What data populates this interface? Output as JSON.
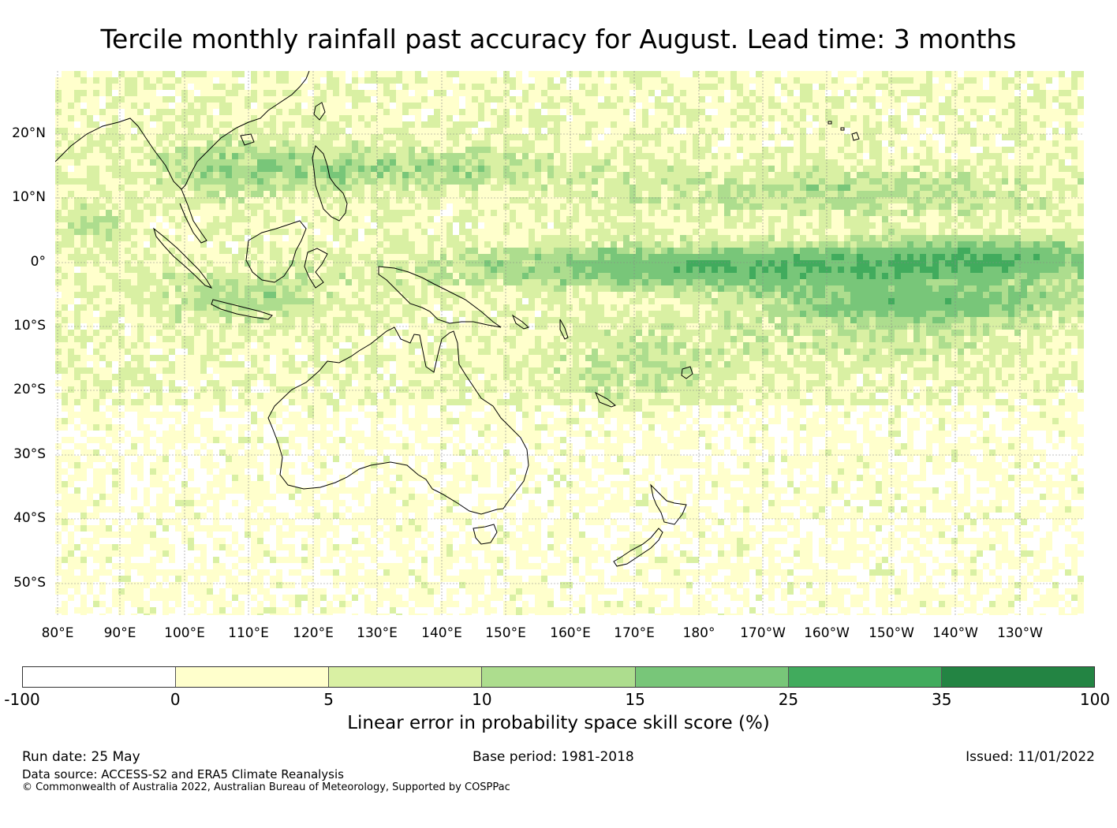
{
  "title": "Tercile monthly rainfall past accuracy for August. Lead time: 3 months",
  "map": {
    "lat_labels": [
      "20°N",
      "10°N",
      "0°",
      "10°S",
      "20°S",
      "30°S",
      "40°S",
      "50°S"
    ],
    "lon_labels": [
      "80°E",
      "90°E",
      "100°E",
      "110°E",
      "120°E",
      "130°E",
      "140°E",
      "150°E",
      "160°E",
      "170°E",
      "180°",
      "170°W",
      "160°W",
      "150°W",
      "140°W",
      "130°W"
    ]
  },
  "colorbar": {
    "ticks": [
      "-100",
      "0",
      "5",
      "10",
      "15",
      "25",
      "35",
      "100"
    ],
    "colors": [
      "#ffffff",
      "#ffffcc",
      "#d9f0a3",
      "#addd8e",
      "#78c679",
      "#41ab5d",
      "#238443"
    ],
    "label": "Linear error in probability space skill score (%)"
  },
  "footer": {
    "run_date": "Run date: 25 May",
    "base_period": "Base period: 1981-2018",
    "issued": "Issued: 11/01/2022",
    "data_source": "Data source: ACCESS-S2 and ERA5 Climate Reanalysis",
    "copyright": "© Commonwealth of Australia 2022, Australian Bureau of Meteorology, Supported by COSPPac"
  }
}
